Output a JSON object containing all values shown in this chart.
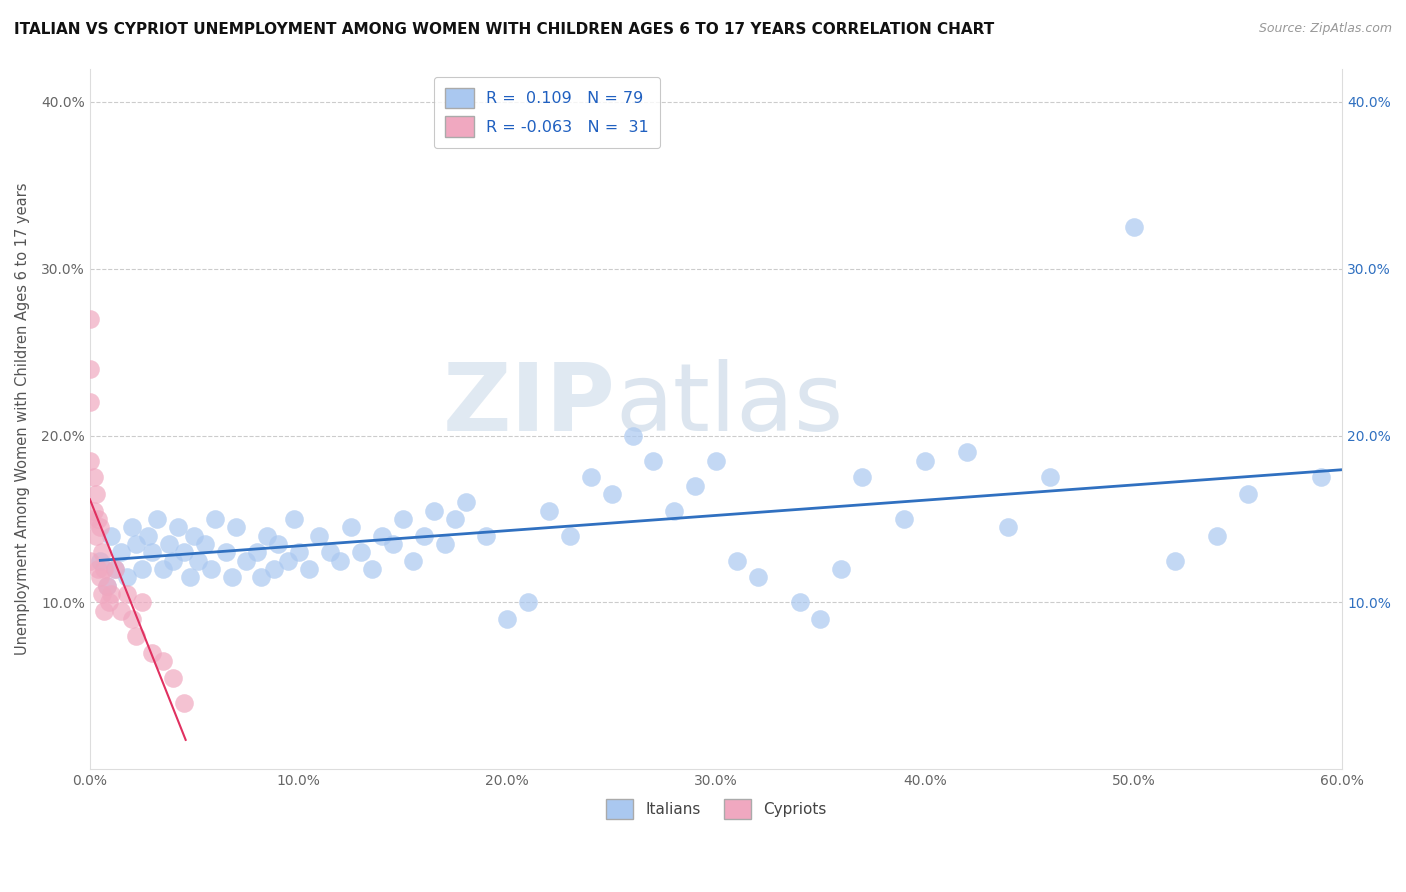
{
  "title": "ITALIAN VS CYPRIOT UNEMPLOYMENT AMONG WOMEN WITH CHILDREN AGES 6 TO 17 YEARS CORRELATION CHART",
  "source": "Source: ZipAtlas.com",
  "ylabel": "Unemployment Among Women with Children Ages 6 to 17 years",
  "xlim": [
    0.0,
    0.6
  ],
  "ylim": [
    0.0,
    0.42
  ],
  "xticks": [
    0.0,
    0.1,
    0.2,
    0.3,
    0.4,
    0.5,
    0.6
  ],
  "xticklabels": [
    "0.0%",
    "10.0%",
    "20.0%",
    "30.0%",
    "40.0%",
    "50.0%",
    "60.0%"
  ],
  "yticks": [
    0.0,
    0.1,
    0.2,
    0.3,
    0.4
  ],
  "yticklabels": [
    "",
    "10.0%",
    "20.0%",
    "30.0%",
    "40.0%"
  ],
  "right_yticks": [
    0.1,
    0.2,
    0.3,
    0.4
  ],
  "right_yticklabels": [
    "10.0%",
    "20.0%",
    "30.0%",
    "40.0%"
  ],
  "legend_italians_R": "0.109",
  "legend_italians_N": "79",
  "legend_cypriots_R": "-0.063",
  "legend_cypriots_N": "31",
  "italian_color": "#aac8f0",
  "cypriot_color": "#f0a8c0",
  "italian_line_color": "#3070c0",
  "cypriot_line_color": "#e03060",
  "watermark_zip": "ZIP",
  "watermark_atlas": "atlas",
  "background_color": "#ffffff",
  "italian_x": [
    0.005,
    0.008,
    0.01,
    0.012,
    0.015,
    0.018,
    0.02,
    0.022,
    0.025,
    0.028,
    0.03,
    0.032,
    0.035,
    0.038,
    0.04,
    0.042,
    0.045,
    0.048,
    0.05,
    0.052,
    0.055,
    0.058,
    0.06,
    0.065,
    0.068,
    0.07,
    0.075,
    0.08,
    0.082,
    0.085,
    0.088,
    0.09,
    0.095,
    0.098,
    0.1,
    0.105,
    0.11,
    0.115,
    0.12,
    0.125,
    0.13,
    0.135,
    0.14,
    0.145,
    0.15,
    0.155,
    0.16,
    0.165,
    0.17,
    0.175,
    0.18,
    0.19,
    0.2,
    0.21,
    0.22,
    0.23,
    0.24,
    0.25,
    0.26,
    0.27,
    0.28,
    0.29,
    0.3,
    0.31,
    0.32,
    0.34,
    0.35,
    0.36,
    0.37,
    0.39,
    0.4,
    0.42,
    0.44,
    0.46,
    0.5,
    0.52,
    0.54,
    0.555,
    0.59
  ],
  "italian_y": [
    0.125,
    0.11,
    0.14,
    0.12,
    0.13,
    0.115,
    0.145,
    0.135,
    0.12,
    0.14,
    0.13,
    0.15,
    0.12,
    0.135,
    0.125,
    0.145,
    0.13,
    0.115,
    0.14,
    0.125,
    0.135,
    0.12,
    0.15,
    0.13,
    0.115,
    0.145,
    0.125,
    0.13,
    0.115,
    0.14,
    0.12,
    0.135,
    0.125,
    0.15,
    0.13,
    0.12,
    0.14,
    0.13,
    0.125,
    0.145,
    0.13,
    0.12,
    0.14,
    0.135,
    0.15,
    0.125,
    0.14,
    0.155,
    0.135,
    0.15,
    0.16,
    0.14,
    0.09,
    0.1,
    0.155,
    0.14,
    0.175,
    0.165,
    0.2,
    0.185,
    0.155,
    0.17,
    0.185,
    0.125,
    0.115,
    0.1,
    0.09,
    0.12,
    0.175,
    0.15,
    0.185,
    0.19,
    0.145,
    0.175,
    0.325,
    0.125,
    0.14,
    0.165,
    0.175
  ],
  "cypriot_x": [
    0.0,
    0.0,
    0.0,
    0.0,
    0.0,
    0.0,
    0.002,
    0.002,
    0.003,
    0.003,
    0.004,
    0.004,
    0.005,
    0.005,
    0.006,
    0.006,
    0.007,
    0.007,
    0.008,
    0.009,
    0.01,
    0.012,
    0.015,
    0.018,
    0.02,
    0.022,
    0.025,
    0.03,
    0.035,
    0.04,
    0.045
  ],
  "cypriot_y": [
    0.27,
    0.24,
    0.22,
    0.185,
    0.15,
    0.125,
    0.175,
    0.155,
    0.165,
    0.14,
    0.15,
    0.12,
    0.145,
    0.115,
    0.13,
    0.105,
    0.12,
    0.095,
    0.11,
    0.1,
    0.105,
    0.12,
    0.095,
    0.105,
    0.09,
    0.08,
    0.1,
    0.07,
    0.065,
    0.055,
    0.04
  ]
}
